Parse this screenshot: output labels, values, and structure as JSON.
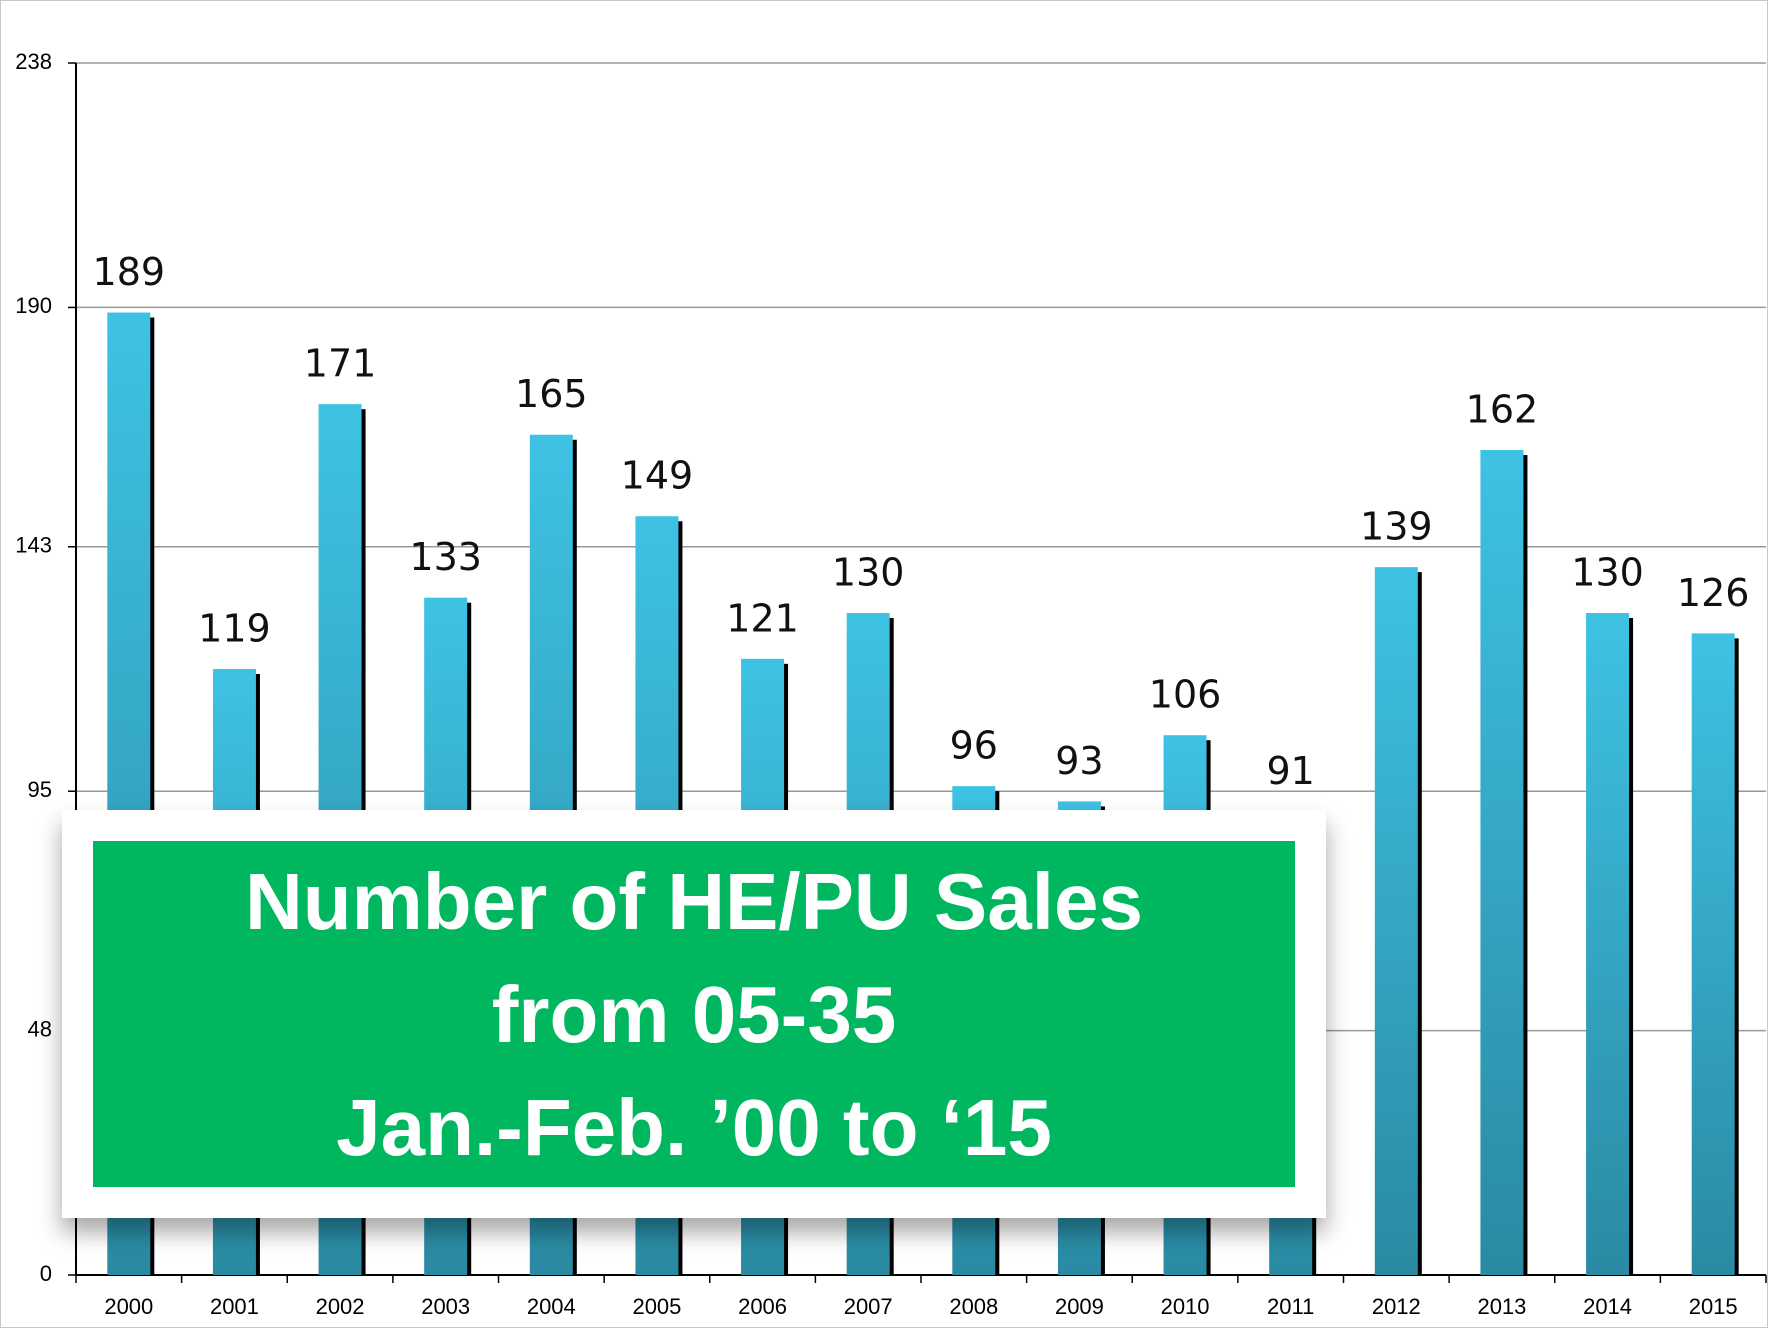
{
  "chart_data": {
    "type": "bar",
    "title": "Number of HE/PU Sales\nfrom 05-35\nJan.-Feb. ’00 to ‘15",
    "categories": [
      "2000",
      "2001",
      "2002",
      "2003",
      "2004",
      "2005",
      "2006",
      "2007",
      "2008",
      "2009",
      "2010",
      "2011",
      "2012",
      "2013",
      "2014",
      "2015"
    ],
    "values": [
      189,
      119,
      171,
      133,
      165,
      149,
      121,
      130,
      96,
      93,
      106,
      91,
      139,
      162,
      130,
      126
    ],
    "color": "#3ebee0",
    "ylim": [
      0,
      238
    ],
    "yticks": [
      0,
      48,
      95,
      143,
      190,
      238
    ],
    "grid": true
  }
}
